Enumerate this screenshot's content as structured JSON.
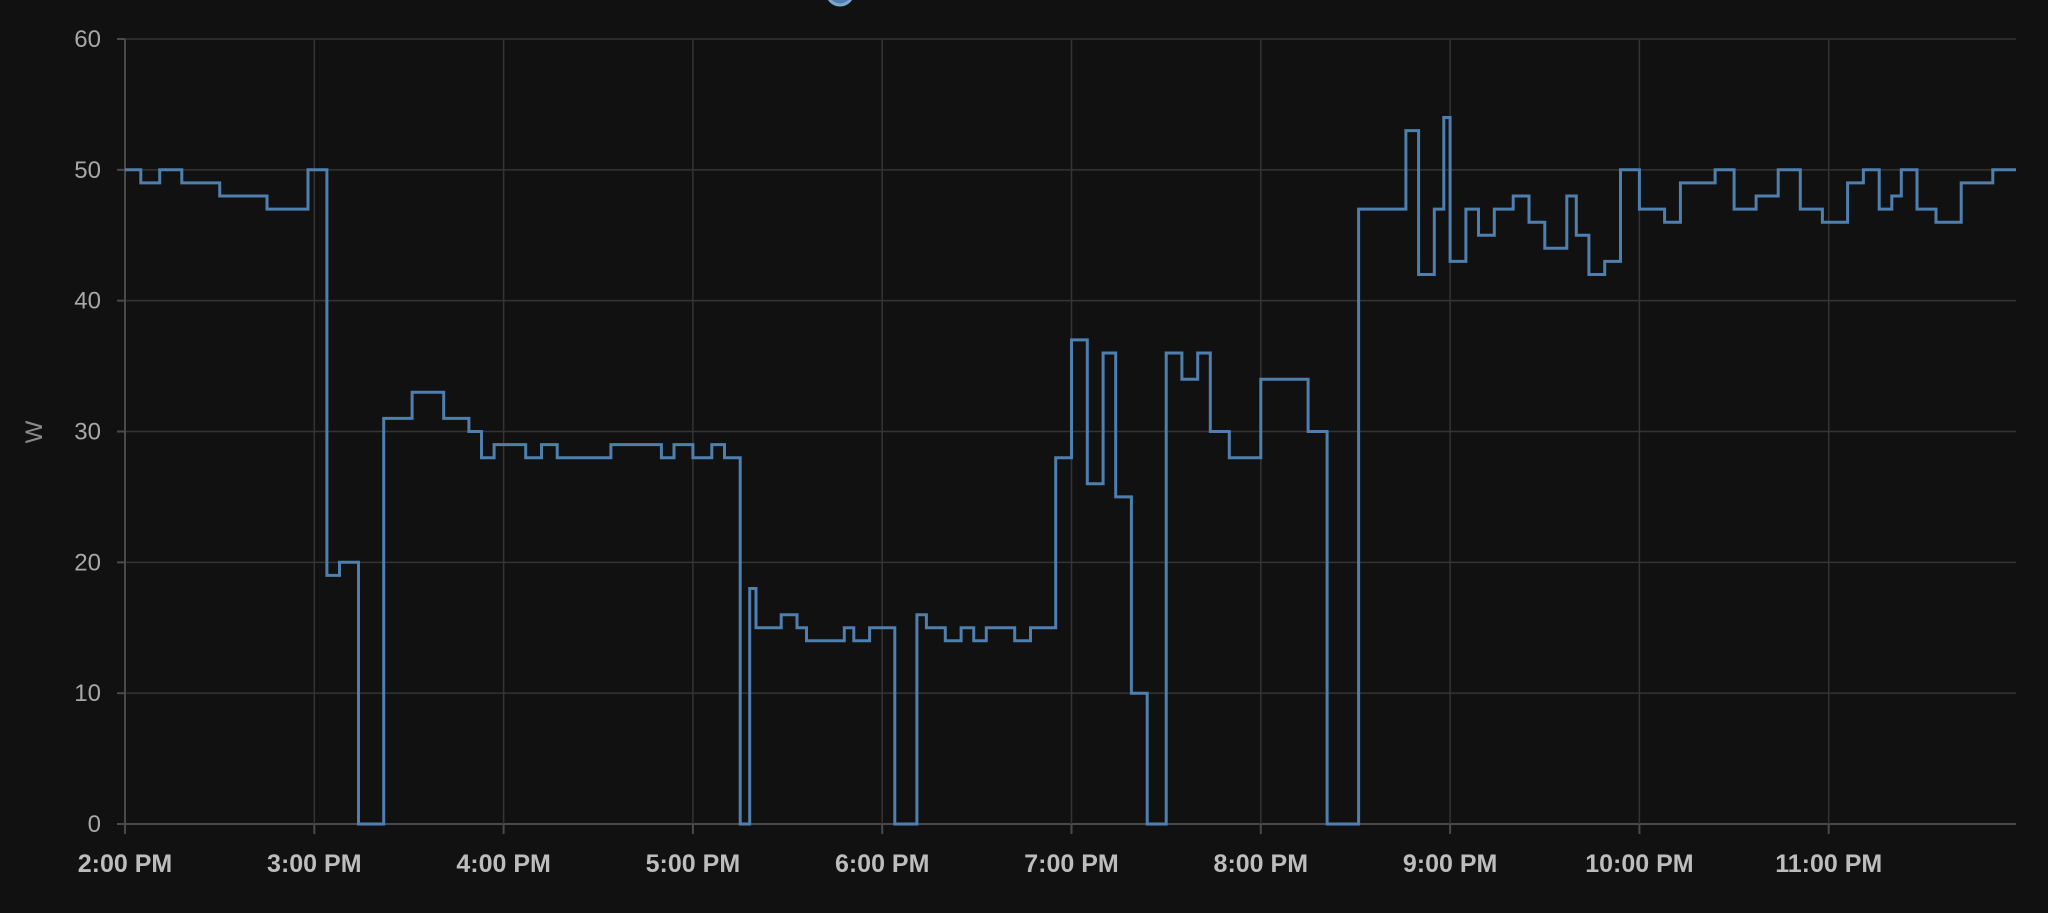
{
  "chart_data": {
    "type": "line",
    "step": true,
    "ylabel": "W",
    "ylim": [
      0,
      60
    ],
    "y_ticks": [
      "0",
      "10",
      "20",
      "30",
      "40",
      "50",
      "60"
    ],
    "x_start": "2:00 PM",
    "x_end": "12:00 AM",
    "x_ticks": [
      "2:00 PM",
      "3:00 PM",
      "4:00 PM",
      "5:00 PM",
      "6:00 PM",
      "7:00 PM",
      "8:00 PM",
      "9:00 PM",
      "10:00 PM",
      "11:00 PM"
    ],
    "grid": true,
    "series": [
      {
        "color": "#4f7fae",
        "x": [
          "2:00 PM",
          "2:05 PM",
          "2:11 PM",
          "2:18 PM",
          "2:30 PM",
          "2:45 PM",
          "2:58 PM",
          "3:04 PM",
          "3:08 PM",
          "3:14 PM",
          "3:22 PM",
          "3:31 PM",
          "3:41 PM",
          "3:49 PM",
          "3:53 PM",
          "3:57 PM",
          "4:07 PM",
          "4:12 PM",
          "4:17 PM",
          "4:27 PM",
          "4:34 PM",
          "4:50 PM",
          "4:54 PM",
          "5:00 PM",
          "5:06 PM",
          "5:10 PM",
          "5:15 PM",
          "5:18 PM",
          "5:20 PM",
          "5:28 PM",
          "5:33 PM",
          "5:36 PM",
          "5:48 PM",
          "5:51 PM",
          "5:56 PM",
          "6:04 PM",
          "6:11 PM",
          "6:14 PM",
          "6:20 PM",
          "6:25 PM",
          "6:29 PM",
          "6:33 PM",
          "6:42 PM",
          "6:47 PM",
          "6:55 PM",
          "7:00 PM",
          "7:05 PM",
          "7:10 PM",
          "7:14 PM",
          "7:19 PM",
          "7:24 PM",
          "7:30 PM",
          "7:35 PM",
          "7:40 PM",
          "7:44 PM",
          "7:50 PM",
          "8:00 PM",
          "8:15 PM",
          "8:21 PM",
          "8:31 PM",
          "8:46 PM",
          "8:50 PM",
          "8:55 PM",
          "8:58 PM",
          "9:00 PM",
          "9:05 PM",
          "9:09 PM",
          "9:14 PM",
          "9:20 PM",
          "9:25 PM",
          "9:30 PM",
          "9:37 PM",
          "9:40 PM",
          "9:44 PM",
          "9:49 PM",
          "9:54 PM",
          "10:00 PM",
          "10:08 PM",
          "10:13 PM",
          "10:24 PM",
          "10:30 PM",
          "10:37 PM",
          "10:44 PM",
          "10:51 PM",
          "10:58 PM",
          "11:06 PM",
          "11:11 PM",
          "11:16 PM",
          "11:20 PM",
          "11:23 PM",
          "11:28 PM",
          "11:34 PM",
          "11:42 PM",
          "11:52 PM",
          "11:59 PM"
        ],
        "y": [
          50,
          49,
          50,
          49,
          48,
          47,
          50,
          19,
          20,
          0,
          31,
          33,
          31,
          30,
          28,
          29,
          28,
          29,
          28,
          28,
          29,
          28,
          29,
          28,
          29,
          28,
          0,
          18,
          15,
          16,
          15,
          14,
          15,
          14,
          15,
          0,
          16,
          15,
          14,
          15,
          14,
          15,
          14,
          15,
          28,
          37,
          26,
          36,
          25,
          10,
          0,
          36,
          34,
          36,
          30,
          28,
          34,
          30,
          0,
          47,
          53,
          42,
          47,
          54,
          43,
          47,
          45,
          47,
          48,
          46,
          44,
          48,
          45,
          42,
          43,
          50,
          47,
          46,
          49,
          50,
          47,
          48,
          50,
          47,
          46,
          49,
          50,
          47,
          48,
          50,
          47,
          46,
          49,
          50,
          50
        ]
      }
    ]
  }
}
